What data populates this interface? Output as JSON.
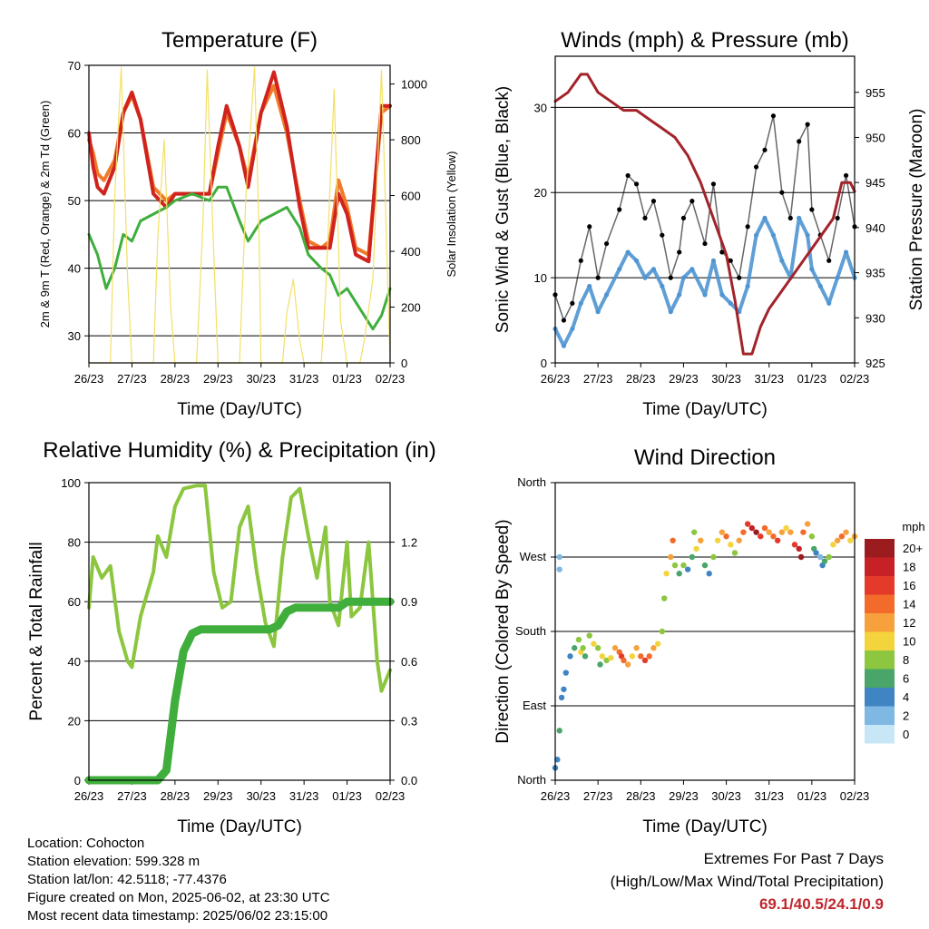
{
  "chart_data": [
    {
      "id": "temperature",
      "type": "line",
      "title": "Temperature (F)",
      "xlabel": "Time (Day/UTC)",
      "ylabel": "2m & 9m T (Red, Orange) & 2m Td (Green)",
      "y2label": "Solar Insolation (Yellow)",
      "x_ticks": [
        "26/23",
        "27/23",
        "28/23",
        "29/23",
        "30/23",
        "31/23",
        "01/23",
        "02/23"
      ],
      "ylim": [
        26,
        70
      ],
      "y_ticks": [
        30,
        40,
        50,
        60,
        70
      ],
      "y2lim": [
        0,
        1067
      ],
      "y2_ticks": [
        0,
        200,
        400,
        600,
        800,
        1000
      ],
      "series": [
        {
          "color": "#f07a2a",
          "axis": "left",
          "width": 4,
          "x": [
            0,
            0.1,
            0.2,
            0.35,
            0.6,
            0.8,
            1.0,
            1.2,
            1.5,
            1.8,
            2.0,
            2.4,
            2.8,
            3.0,
            3.2,
            3.5,
            3.7,
            4.0,
            4.3,
            4.6,
            4.9,
            5.1,
            5.4,
            5.6,
            5.8,
            6.0,
            6.2,
            6.5,
            6.8,
            7.0
          ],
          "y": [
            59,
            57,
            54,
            53,
            56,
            63,
            65.5,
            62,
            52,
            50,
            51,
            51,
            51,
            57,
            63,
            58,
            53,
            63,
            67,
            60,
            50,
            44,
            43,
            44,
            53,
            49,
            43,
            42,
            63,
            64
          ]
        },
        {
          "color": "#d0231e",
          "axis": "left",
          "width": 4,
          "x": [
            0,
            0.1,
            0.2,
            0.35,
            0.6,
            0.8,
            1.0,
            1.2,
            1.5,
            1.8,
            2.0,
            2.4,
            2.8,
            3.0,
            3.2,
            3.5,
            3.7,
            4.0,
            4.3,
            4.6,
            4.9,
            5.1,
            5.4,
            5.6,
            5.8,
            6.0,
            6.2,
            6.5,
            6.8,
            7.0
          ],
          "y": [
            60,
            55,
            52,
            51,
            55,
            63,
            66,
            62,
            51,
            49,
            51,
            51,
            51,
            58,
            64,
            58,
            52,
            63,
            69,
            61,
            49,
            43,
            43,
            43,
            51,
            48,
            42,
            41,
            64,
            64
          ]
        },
        {
          "color": "#3fae3c",
          "axis": "left",
          "width": 3,
          "x": [
            0,
            0.2,
            0.4,
            0.6,
            0.8,
            1.0,
            1.2,
            1.5,
            1.8,
            2.0,
            2.4,
            2.8,
            3.0,
            3.2,
            3.5,
            3.7,
            4.0,
            4.3,
            4.6,
            4.9,
            5.1,
            5.4,
            5.6,
            5.8,
            6.0,
            6.2,
            6.4,
            6.6,
            6.8,
            7.0
          ],
          "y": [
            45,
            42,
            37,
            40,
            45,
            44,
            47,
            48,
            49,
            50,
            51,
            50,
            52,
            52,
            47,
            44,
            47,
            48,
            49,
            46,
            42,
            40,
            39,
            36,
            37,
            35,
            33,
            31,
            33,
            37
          ]
        },
        {
          "color": "#f2e066",
          "axis": "right",
          "width": 1.2,
          "x": [
            0,
            0.5,
            0.6,
            0.75,
            0.9,
            1.0,
            1.5,
            1.6,
            1.75,
            1.9,
            2.0,
            2.5,
            2.65,
            2.75,
            2.9,
            3.0,
            3.5,
            3.65,
            3.85,
            3.95,
            4.0,
            4.5,
            4.6,
            4.75,
            4.9,
            5.0,
            5.4,
            5.5,
            5.7,
            5.85,
            6.0,
            6.3,
            6.4,
            6.6,
            6.8,
            7.0
          ],
          "y": [
            0,
            0,
            600,
            1060,
            300,
            0,
            0,
            450,
            800,
            200,
            0,
            0,
            500,
            1050,
            400,
            0,
            0,
            600,
            1060,
            500,
            0,
            0,
            180,
            300,
            80,
            0,
            0,
            250,
            980,
            150,
            0,
            0,
            80,
            300,
            1050,
            0
          ]
        }
      ]
    },
    {
      "id": "winds",
      "type": "scatter",
      "title": "Winds (mph) & Pressure (mb)",
      "xlabel": "Time (Day/UTC)",
      "ylabel": "Sonic Wind & Gust (Blue, Black)",
      "y2label": "Station Pressure (Maroon)",
      "x_ticks": [
        "26/23",
        "27/23",
        "28/23",
        "29/23",
        "30/23",
        "31/23",
        "01/23",
        "02/23"
      ],
      "ylim": [
        0,
        36
      ],
      "y_ticks": [
        0,
        10,
        20,
        30
      ],
      "y2lim": [
        925,
        959
      ],
      "y2_ticks": [
        925,
        930,
        935,
        940,
        945,
        950,
        955
      ],
      "series": [
        {
          "color": "#000000",
          "axis": "left",
          "x": [
            0,
            0.2,
            0.4,
            0.6,
            0.8,
            1.0,
            1.2,
            1.5,
            1.7,
            1.9,
            2.1,
            2.3,
            2.5,
            2.7,
            2.9,
            3.0,
            3.2,
            3.5,
            3.7,
            3.9,
            4.1,
            4.3,
            4.5,
            4.7,
            4.9,
            5.1,
            5.3,
            5.5,
            5.7,
            5.9,
            6.0,
            6.2,
            6.4,
            6.6,
            6.8,
            7.0
          ],
          "y": [
            8,
            5,
            7,
            12,
            16,
            10,
            14,
            18,
            22,
            21,
            17,
            19,
            15,
            10,
            13,
            17,
            19,
            14,
            21,
            13,
            12,
            10,
            16,
            23,
            25,
            29,
            20,
            17,
            26,
            28,
            18,
            15,
            12,
            17,
            22,
            16
          ]
        },
        {
          "color": "#4f95d1",
          "axis": "left",
          "x": [
            0,
            0.2,
            0.4,
            0.6,
            0.8,
            1.0,
            1.2,
            1.5,
            1.7,
            1.9,
            2.1,
            2.3,
            2.5,
            2.7,
            2.9,
            3.0,
            3.2,
            3.5,
            3.7,
            3.9,
            4.1,
            4.3,
            4.5,
            4.7,
            4.9,
            5.1,
            5.3,
            5.5,
            5.7,
            5.9,
            6.0,
            6.2,
            6.4,
            6.6,
            6.8,
            7.0
          ],
          "y": [
            4,
            2,
            4,
            7,
            9,
            6,
            8,
            11,
            13,
            12,
            10,
            11,
            9,
            6,
            8,
            10,
            11,
            8,
            12,
            8,
            7,
            6,
            9,
            15,
            17,
            15,
            12,
            10,
            17,
            15,
            11,
            9,
            7,
            10,
            13,
            10
          ]
        },
        {
          "color": "#a3232a",
          "axis": "right",
          "line": true,
          "x": [
            0,
            0.3,
            0.6,
            0.75,
            1.0,
            1.3,
            1.6,
            1.9,
            2.2,
            2.5,
            2.8,
            3.1,
            3.4,
            3.7,
            4.0,
            4.2,
            4.4,
            4.6,
            4.8,
            5.0,
            5.3,
            5.6,
            5.9,
            6.2,
            6.5,
            6.7,
            6.9,
            7.0
          ],
          "y": [
            954,
            955,
            957,
            957,
            955,
            954,
            953,
            953,
            952,
            951,
            950,
            948,
            945,
            941,
            937,
            932,
            926,
            926,
            929,
            931,
            933,
            935,
            937,
            939,
            941,
            945,
            945,
            944
          ]
        }
      ]
    },
    {
      "id": "humidity",
      "type": "line",
      "title": "Relative Humidity (%) & Precipitation (in)",
      "xlabel": "Time (Day/UTC)",
      "ylabel": "Percent & Total Rainfall",
      "x_ticks": [
        "26/23",
        "27/23",
        "28/23",
        "29/23",
        "30/23",
        "31/23",
        "01/23",
        "02/23"
      ],
      "ylim": [
        0,
        100
      ],
      "y_ticks": [
        0,
        20,
        40,
        60,
        80,
        100
      ],
      "y2lim": [
        0,
        1.5
      ],
      "y2_ticks": [
        "0.0",
        "0.3",
        "0.6",
        "0.9",
        "1.2"
      ],
      "series": [
        {
          "color": "#8cc63f",
          "axis": "left",
          "width": 4,
          "x": [
            0,
            0.1,
            0.3,
            0.5,
            0.7,
            0.9,
            1.0,
            1.2,
            1.5,
            1.6,
            1.8,
            2.0,
            2.2,
            2.5,
            2.7,
            2.9,
            3.1,
            3.3,
            3.5,
            3.7,
            3.9,
            4.1,
            4.3,
            4.5,
            4.7,
            4.9,
            5.1,
            5.3,
            5.5,
            5.6,
            5.8,
            6.0,
            6.1,
            6.3,
            6.5,
            6.7,
            6.8,
            7.0
          ],
          "y": [
            58,
            75,
            68,
            72,
            50,
            40,
            38,
            55,
            70,
            82,
            75,
            92,
            98,
            99,
            99,
            70,
            58,
            60,
            85,
            92,
            70,
            53,
            45,
            75,
            95,
            98,
            82,
            68,
            85,
            60,
            52,
            80,
            55,
            58,
            80,
            40,
            30,
            37
          ]
        },
        {
          "color": "#3fae3c",
          "axis": "right",
          "width": 9,
          "x": [
            0,
            0.5,
            1.0,
            1.6,
            1.8,
            2.0,
            2.2,
            2.4,
            2.6,
            2.8,
            3.0,
            3.4,
            3.8,
            4.2,
            4.4,
            4.6,
            4.8,
            5.0,
            5.4,
            5.8,
            6.0,
            6.2,
            6.6,
            7.0
          ],
          "y": [
            0,
            0,
            0,
            0,
            0.05,
            0.4,
            0.65,
            0.74,
            0.76,
            0.76,
            0.76,
            0.76,
            0.76,
            0.76,
            0.78,
            0.85,
            0.87,
            0.87,
            0.87,
            0.87,
            0.9,
            0.9,
            0.9,
            0.9
          ]
        }
      ]
    },
    {
      "id": "direction",
      "type": "scatter",
      "title": "Wind Direction",
      "xlabel": "Time (Day/UTC)",
      "ylabel": "Direction (Colored By Speed)",
      "x_ticks": [
        "26/23",
        "27/23",
        "28/23",
        "29/23",
        "30/23",
        "31/23",
        "01/23",
        "02/23"
      ],
      "y_tick_labels": [
        "North",
        "East",
        "South",
        "West",
        "North"
      ],
      "ylim": [
        0,
        360
      ],
      "legend": {
        "title": "mph",
        "labels": [
          "20+",
          "18",
          "16",
          "14",
          "12",
          "10",
          "8",
          "6",
          "4",
          "2",
          "0"
        ],
        "colors": [
          "#9b1c1f",
          "#c72127",
          "#e43a2a",
          "#f26b2b",
          "#f7a13d",
          "#f4d43c",
          "#8dc63f",
          "#4aa56a",
          "#3f85c3",
          "#7fb8e3",
          "#c7e6f6"
        ],
        "placement": "right"
      },
      "points": [
        [
          0.0,
          15,
          4
        ],
        [
          0.05,
          25,
          4
        ],
        [
          0.1,
          60,
          6
        ],
        [
          0.15,
          100,
          4
        ],
        [
          0.2,
          110,
          4
        ],
        [
          0.1,
          270,
          2
        ],
        [
          0.1,
          255,
          2
        ],
        [
          0.25,
          130,
          4
        ],
        [
          0.35,
          150,
          4
        ],
        [
          0.45,
          160,
          6
        ],
        [
          0.55,
          170,
          8
        ],
        [
          0.6,
          155,
          10
        ],
        [
          0.65,
          160,
          8
        ],
        [
          0.7,
          150,
          6
        ],
        [
          0.8,
          175,
          8
        ],
        [
          0.9,
          165,
          10
        ],
        [
          1.0,
          160,
          8
        ],
        [
          1.05,
          140,
          6
        ],
        [
          1.1,
          150,
          10
        ],
        [
          1.2,
          145,
          8
        ],
        [
          1.3,
          148,
          10
        ],
        [
          1.4,
          160,
          12
        ],
        [
          1.5,
          155,
          14
        ],
        [
          1.55,
          150,
          16
        ],
        [
          1.6,
          145,
          14
        ],
        [
          1.7,
          140,
          12
        ],
        [
          1.8,
          150,
          10
        ],
        [
          1.9,
          160,
          12
        ],
        [
          2.0,
          150,
          14
        ],
        [
          2.1,
          145,
          16
        ],
        [
          2.2,
          150,
          14
        ],
        [
          2.3,
          160,
          12
        ],
        [
          2.4,
          165,
          10
        ],
        [
          2.5,
          180,
          8
        ],
        [
          2.55,
          220,
          8
        ],
        [
          2.6,
          250,
          10
        ],
        [
          2.7,
          270,
          12
        ],
        [
          2.75,
          290,
          14
        ],
        [
          2.8,
          260,
          8
        ],
        [
          2.9,
          250,
          6
        ],
        [
          3.0,
          260,
          8
        ],
        [
          3.1,
          255,
          4
        ],
        [
          3.2,
          270,
          6
        ],
        [
          3.25,
          300,
          8
        ],
        [
          3.3,
          280,
          10
        ],
        [
          3.4,
          290,
          12
        ],
        [
          3.5,
          260,
          6
        ],
        [
          3.6,
          250,
          4
        ],
        [
          3.7,
          270,
          8
        ],
        [
          3.8,
          290,
          10
        ],
        [
          3.9,
          300,
          12
        ],
        [
          4.0,
          295,
          14
        ],
        [
          4.1,
          285,
          10
        ],
        [
          4.2,
          275,
          8
        ],
        [
          4.3,
          290,
          12
        ],
        [
          4.4,
          300,
          14
        ],
        [
          4.5,
          310,
          16
        ],
        [
          4.6,
          305,
          18
        ],
        [
          4.7,
          300,
          20
        ],
        [
          4.8,
          295,
          16
        ],
        [
          4.9,
          305,
          14
        ],
        [
          5.0,
          300,
          12
        ],
        [
          5.1,
          295,
          14
        ],
        [
          5.2,
          290,
          16
        ],
        [
          5.3,
          300,
          12
        ],
        [
          5.4,
          305,
          10
        ],
        [
          5.5,
          300,
          12
        ],
        [
          5.6,
          285,
          16
        ],
        [
          5.7,
          280,
          18
        ],
        [
          5.75,
          270,
          20
        ],
        [
          5.8,
          300,
          14
        ],
        [
          5.9,
          310,
          12
        ],
        [
          6.0,
          295,
          8
        ],
        [
          6.05,
          280,
          6
        ],
        [
          6.1,
          275,
          4
        ],
        [
          6.2,
          270,
          2
        ],
        [
          6.25,
          260,
          4
        ],
        [
          6.3,
          265,
          6
        ],
        [
          6.4,
          270,
          8
        ],
        [
          6.5,
          285,
          10
        ],
        [
          6.6,
          290,
          12
        ],
        [
          6.7,
          295,
          14
        ],
        [
          6.8,
          300,
          12
        ],
        [
          6.9,
          290,
          10
        ],
        [
          7.0,
          295,
          12
        ]
      ]
    }
  ],
  "info": {
    "location": "Location: Cohocton",
    "elevation": "Station elevation: 599.328 m",
    "latlon": "Station lat/lon: 42.5118; -77.4376",
    "created": "Figure created on Mon, 2025-06-02, at 23:30 UTC",
    "recent": "Most recent data timestamp: 2025/06/02 23:15:00"
  },
  "extremes": {
    "title": "Extremes For Past 7 Days",
    "subtitle": "(High/Low/Max Wind/Total Precipitation)",
    "values": "69.1/40.5/24.1/0.9"
  }
}
